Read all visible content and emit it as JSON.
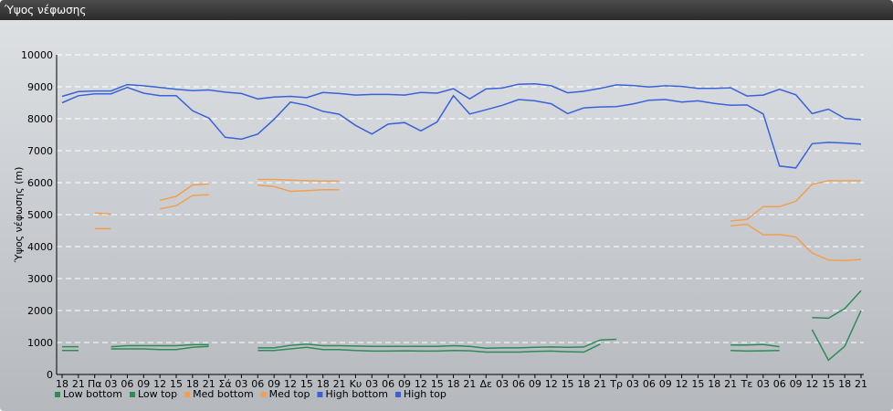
{
  "window": {
    "title": "Ύψος νέφωσης"
  },
  "chart_data": {
    "type": "line",
    "title": "",
    "ylabel": "Ύψος νέφωσης (m)",
    "xlabel": "",
    "ylim": [
      0,
      10000
    ],
    "yticks": [
      0,
      1000,
      2000,
      3000,
      4000,
      5000,
      6000,
      7000,
      8000,
      9000,
      10000
    ],
    "grid": true,
    "legend_position": "bottom-left",
    "categories": [
      "18",
      "21",
      "Πα",
      "03",
      "06",
      "09",
      "12",
      "15",
      "18",
      "21",
      "Σά",
      "03",
      "06",
      "09",
      "12",
      "15",
      "18",
      "21",
      "Κυ",
      "03",
      "06",
      "09",
      "12",
      "15",
      "18",
      "21",
      "Δε",
      "03",
      "06",
      "09",
      "12",
      "15",
      "18",
      "21",
      "Τρ",
      "03",
      "06",
      "09",
      "12",
      "15",
      "18",
      "21",
      "Τε",
      "03",
      "06",
      "09",
      "12",
      "15",
      "18",
      "21"
    ],
    "series": [
      {
        "name": "Low bottom",
        "color": "#2e8b57",
        "values": [
          750,
          750,
          null,
          800,
          800,
          800,
          780,
          780,
          850,
          880,
          null,
          null,
          750,
          750,
          800,
          850,
          780,
          780,
          750,
          730,
          730,
          740,
          730,
          730,
          750,
          740,
          700,
          700,
          700,
          720,
          730,
          710,
          700,
          950,
          null,
          null,
          null,
          null,
          null,
          null,
          null,
          750,
          730,
          740,
          750,
          null,
          1400,
          450,
          880,
          2000
        ]
      },
      {
        "name": "Low top",
        "color": "#2e8b57",
        "values": [
          870,
          870,
          null,
          870,
          900,
          900,
          900,
          900,
          930,
          930,
          null,
          null,
          830,
          830,
          910,
          950,
          900,
          900,
          890,
          880,
          880,
          880,
          880,
          880,
          900,
          880,
          820,
          830,
          830,
          850,
          860,
          850,
          860,
          1080,
          1100,
          null,
          null,
          null,
          null,
          null,
          null,
          920,
          920,
          940,
          870,
          null,
          1780,
          1760,
          2060,
          2620
        ]
      },
      {
        "name": "Med bottom",
        "color": "#f0a050",
        "values": [
          null,
          null,
          4560,
          4560,
          null,
          null,
          5180,
          5280,
          5600,
          5620,
          null,
          null,
          5920,
          5880,
          5730,
          5750,
          5780,
          5780,
          null,
          null,
          null,
          null,
          null,
          null,
          null,
          null,
          null,
          null,
          null,
          null,
          null,
          null,
          null,
          null,
          null,
          null,
          null,
          null,
          null,
          null,
          null,
          4650,
          4700,
          4370,
          4380,
          4300,
          3800,
          3580,
          3560,
          3600
        ]
      },
      {
        "name": "Med top",
        "color": "#f0a050",
        "values": [
          null,
          null,
          5050,
          5020,
          null,
          null,
          5450,
          5570,
          5930,
          5960,
          null,
          null,
          6100,
          6100,
          6080,
          6060,
          6050,
          6050,
          null,
          null,
          null,
          null,
          null,
          null,
          null,
          null,
          null,
          null,
          null,
          null,
          null,
          null,
          null,
          null,
          null,
          null,
          null,
          null,
          null,
          null,
          null,
          4800,
          4850,
          5250,
          5250,
          5420,
          5950,
          6060,
          6060,
          6060
        ]
      },
      {
        "name": "High bottom",
        "color": "#3a62d8",
        "values": [
          8500,
          8720,
          8780,
          8780,
          8980,
          8800,
          8720,
          8720,
          8250,
          8020,
          7420,
          7360,
          7520,
          7980,
          8520,
          8420,
          8230,
          8140,
          7790,
          7520,
          7830,
          7880,
          7620,
          7900,
          8720,
          8150,
          8280,
          8420,
          8600,
          8560,
          8470,
          8160,
          8340,
          8370,
          8380,
          8460,
          8580,
          8600,
          8520,
          8560,
          8480,
          8420,
          8430,
          8150,
          6520,
          6460,
          7220,
          7260,
          7240,
          7210
        ]
      },
      {
        "name": "High top",
        "color": "#3a62d8",
        "values": [
          8700,
          8850,
          8870,
          8870,
          9070,
          9030,
          8980,
          8920,
          8880,
          8900,
          8830,
          8790,
          8620,
          8680,
          8700,
          8660,
          8820,
          8790,
          8740,
          8760,
          8760,
          8740,
          8820,
          8800,
          8940,
          8620,
          8930,
          8960,
          9080,
          9090,
          9030,
          8810,
          8860,
          8950,
          9060,
          9040,
          8990,
          9030,
          9010,
          8950,
          8950,
          8970,
          8710,
          8740,
          8920,
          8750,
          8160,
          8300,
          8010,
          7970
        ]
      }
    ]
  }
}
